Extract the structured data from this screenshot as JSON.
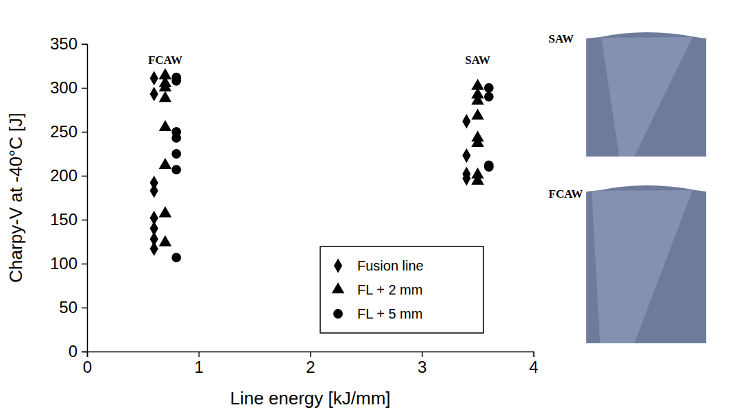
{
  "chart_data": {
    "type": "scatter",
    "xlabel": "Line energy [kJ/mm]",
    "ylabel": "Charpy-V at -40°C [J]",
    "xlim": [
      0,
      4
    ],
    "ylim": [
      0,
      350
    ],
    "xticks": [
      0,
      1,
      2,
      3,
      4
    ],
    "yticks": [
      0,
      50,
      100,
      150,
      200,
      250,
      300,
      350
    ],
    "grid": false,
    "legend": "lower right",
    "series": [
      {
        "name": "Fusion line",
        "marker": "diamond",
        "color": "#000000",
        "x": [
          0.6,
          0.6,
          0.6,
          0.6,
          0.6,
          0.6,
          0.6,
          0.6,
          3.4,
          3.4,
          3.4,
          3.4
        ],
        "values": [
          311,
          293,
          192,
          183,
          152,
          140,
          128,
          117,
          262,
          223,
          202,
          197
        ]
      },
      {
        "name": "FL + 2 mm",
        "marker": "triangle",
        "color": "#000000",
        "x": [
          0.7,
          0.7,
          0.7,
          0.7,
          0.7,
          0.7,
          0.7,
          0.7,
          3.5,
          3.5,
          3.5,
          3.5,
          3.5,
          3.5,
          3.5,
          3.5
        ],
        "values": [
          314,
          305,
          288,
          255,
          212,
          157,
          124,
          300,
          302,
          292,
          285,
          268,
          243,
          237,
          201,
          194
        ]
      },
      {
        "name": "FL + 5 mm",
        "marker": "circle",
        "color": "#000000",
        "x": [
          0.8,
          0.8,
          0.8,
          0.8,
          0.8,
          0.8,
          0.8,
          3.6,
          3.6,
          3.6,
          3.6
        ],
        "values": [
          312,
          308,
          250,
          243,
          225,
          207,
          107,
          300,
          290,
          212,
          210
        ]
      }
    ],
    "annotations": [
      {
        "text": "FCAW",
        "x": 0.7,
        "y": 327
      },
      {
        "text": "SAW",
        "x": 3.5,
        "y": 327
      }
    ],
    "macrographs": [
      "SAW",
      "FCAW"
    ]
  }
}
